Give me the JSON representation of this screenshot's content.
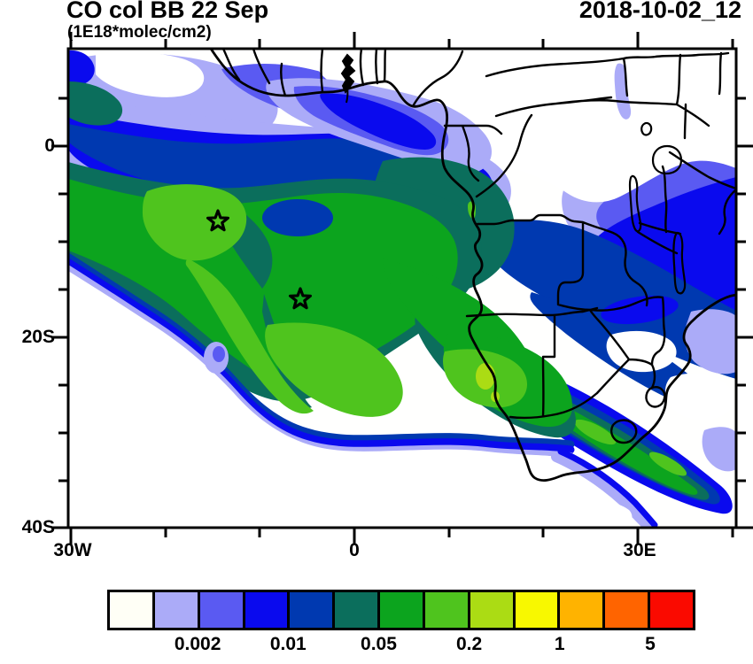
{
  "header": {
    "title": "CO col BB 22 Sep",
    "units": "(1E18*molec/cm2)",
    "datetime": "2018-10-02_12"
  },
  "axes": {
    "y_labels": [
      {
        "text": "0"
      },
      {
        "text": "20S"
      },
      {
        "text": "40S"
      }
    ],
    "x_labels": [
      {
        "text": "30W"
      },
      {
        "text": "0"
      },
      {
        "text": "30E"
      }
    ]
  },
  "colorbar": {
    "colors": [
      "#FFFFF6",
      "#ABABF8",
      "#5A5AF2",
      "#0A0AEE",
      "#0039B0",
      "#0B6E5C",
      "#0CA41E",
      "#4FC41E",
      "#ABDC14",
      "#F8F800",
      "#FFB300",
      "#FF6400",
      "#FA0A00"
    ],
    "labels": [
      "0.002",
      "0.01",
      "0.05",
      "0.2",
      "1",
      "5"
    ],
    "label_boundary_indices": [
      2,
      4,
      6,
      8,
      10,
      12
    ]
  },
  "chart_data": {
    "type": "heatmap",
    "subtype": "filled-contour-map",
    "title": "CO col BB 22 Sep",
    "ylabel_units": "1E18*molec/cm2",
    "timestamp": "2018-10-02_12",
    "projection": "lat-lon, Africa / South Atlantic",
    "lon_range_deg": [
      -30.3,
      40.4
    ],
    "lat_range_deg": [
      -39.9,
      10.2
    ],
    "x_ticks_deg": {
      "major": [
        -30,
        0,
        30
      ],
      "minor": [
        -20,
        -10,
        10,
        20,
        40
      ]
    },
    "y_ticks_deg": {
      "major": [
        0,
        -20,
        -40
      ],
      "minor": [
        5,
        -5,
        -10,
        -15,
        -25,
        -30,
        -35
      ]
    },
    "labeled_contour_levels": [
      0.002,
      0.01,
      0.05,
      0.2,
      1,
      5
    ],
    "palette": [
      "#FFFFF6",
      "#ABABF8",
      "#5A5AF2",
      "#0A0AEE",
      "#0039B0",
      "#0B6E5C",
      "#0CA41E",
      "#4FC41E",
      "#ABDC14",
      "#F8F800",
      "#FFB300",
      "#FF6400",
      "#FA0A00"
    ],
    "legend_position": "bottom horizontal colorbar",
    "markers": [
      {
        "type": "star",
        "lon": -14.4,
        "lat": -7.9
      },
      {
        "type": "star",
        "lon": -5.7,
        "lat": -16.0
      }
    ],
    "features": [
      {
        "desc": "Broad biomass-burning CO plume 0.05-0.2 over the tropical South Atlantic",
        "lon": [
          -30,
          10
        ],
        "lat": [
          -25,
          -3
        ],
        "level": "0.05-0.2"
      },
      {
        "desc": "Bright-green plume core around the two star markers",
        "lon": [
          -22,
          -5
        ],
        "lat": [
          -17,
          -5
        ],
        "level": "0.1-0.2"
      },
      {
        "desc": "Local maximum 0.2-0.5 (yellow-green) off the Namibian coast",
        "lon": 13.5,
        "lat": -24,
        "level": "0.2-0.5"
      },
      {
        "desc": "Plume band sweeping southeast across Namibia/South Africa to the Indian Ocean",
        "lon": [
          14,
          40
        ],
        "lat": [
          -38,
          -25
        ],
        "level": "0.05-0.2"
      },
      {
        "desc": "Dark-blue/navy 0.01-0.05 over Congo, Zambia, Tanzania, Zimbabwe",
        "lon": [
          12,
          40
        ],
        "lat": [
          -22,
          -5
        ],
        "level": "0.01-0.05"
      },
      {
        "desc": "Blue pocket embedded in Atlantic plume",
        "lon": [
          -10,
          -3
        ],
        "lat": [
          -8,
          -5
        ],
        "level": "0.01-0.02"
      },
      {
        "desc": "Near-zero (white) CO over SW Atlantic and north of ~5N over the Sahel",
        "level": "<0.001"
      },
      {
        "desc": "Thin lavender/violet fringes 0.001-0.005 along all plume edges",
        "level": "0.001-0.005"
      }
    ]
  }
}
